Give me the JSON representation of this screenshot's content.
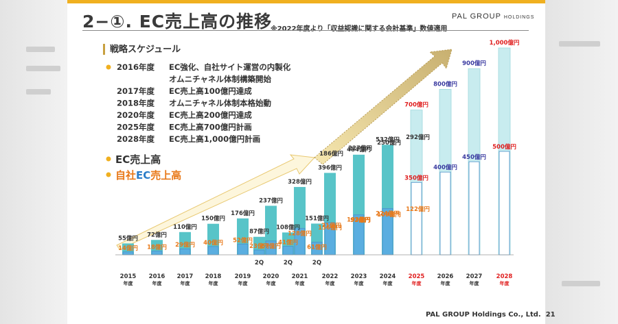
{
  "slide": {
    "title": "2−①. EC売上高の推移",
    "note": "※2022年度より「収益認識に関する会計基準」数値適用",
    "logo_main": "PAL GROUP",
    "logo_sub": "HOLDINGS",
    "footer": "PAL GROUP Holdings Co., Ltd.",
    "page_number": "21"
  },
  "strategy": {
    "heading": "戦略スケジュール",
    "items": [
      {
        "year": "2016年度",
        "text": "EC強化、自社サイト運営の内製化"
      },
      {
        "year": "",
        "text": "オムニチャネル体制構築開始"
      },
      {
        "year": "2017年度",
        "text": "EC売上高100億円達成"
      },
      {
        "year": "2018年度",
        "text": "オムニチャネル体制本格始動"
      },
      {
        "year": "2020年度",
        "text": "EC売上高200億円達成"
      },
      {
        "year": "2025年度",
        "text": "EC売上高700億円計画"
      },
      {
        "year": "2028年度",
        "text": "EC売上高1,000億円計画"
      }
    ]
  },
  "legend": {
    "ec_total": "EC売上高",
    "own_prefix": "自社",
    "own_ec": "EC",
    "own_suffix": "売上高"
  },
  "colors": {
    "accent": "#f0b020",
    "ec_bar": "#58c4c8",
    "ec_bar_plan": "#c8ecef",
    "own_bar": "#5aaee0",
    "own_bar_plan": "#ffffff",
    "orange": "#e87818",
    "red": "#e02020",
    "purple": "#3a3aa0",
    "dark": "#333333"
  },
  "chart_data": {
    "type": "bar",
    "unit": "億円",
    "categories": [
      {
        "label": "2015",
        "sub": "年度"
      },
      {
        "label": "2016",
        "sub": "年度"
      },
      {
        "label": "2017",
        "sub": "年度"
      },
      {
        "label": "2018",
        "sub": "年度"
      },
      {
        "label": "2019",
        "sub": "年度"
      },
      {
        "label": "",
        "sub": "2Q"
      },
      {
        "label": "2020",
        "sub": "年度"
      },
      {
        "label": "",
        "sub": "2Q"
      },
      {
        "label": "2021",
        "sub": "年度"
      },
      {
        "label": "",
        "sub": "2Q"
      },
      {
        "label": "2022",
        "sub": "年度"
      },
      {
        "label": "2023",
        "sub": "年度"
      },
      {
        "label": "2024",
        "sub": "年度"
      },
      {
        "label": "2025",
        "sub": "年度"
      },
      {
        "label": "2026",
        "sub": "年度"
      },
      {
        "label": "2027",
        "sub": "年度"
      },
      {
        "label": "2028",
        "sub": "年度"
      }
    ],
    "series": [
      {
        "name": "EC売上高",
        "values": [
          55,
          72,
          110,
          150,
          176,
          87,
          237,
          108,
          328,
          151,
          396,
          484,
          532,
          700,
          800,
          900,
          1000
        ]
      },
      {
        "name": "自社EC売上高",
        "values": [
          14,
          18,
          29,
          40,
          52,
          23,
          67,
          41,
          128,
          61,
          156,
          193,
          224,
          350,
          400,
          450,
          500
        ]
      }
    ],
    "total_labels": [
      "55億円",
      "72億円",
      "110億円",
      "150億円",
      "176億円",
      "87億円",
      "237億円",
      "108億円",
      "328億円",
      "151億円",
      "396億円",
      "484億円",
      "532億円",
      "700億円",
      "800億円",
      "900億円",
      "1,000億円"
    ],
    "own_labels": [
      "14億円",
      "18億円",
      "29億円",
      "40億円",
      "52億円",
      "23億円",
      "67億円",
      "41億円",
      "128億円",
      "61億円",
      "156億円",
      "193億円",
      "224億円",
      "350億円",
      "400億円",
      "450億円",
      "500億円"
    ],
    "own_labels_secondary": [
      {
        "index": 10,
        "text": "186億円"
      },
      {
        "index": 11,
        "text": "227億円"
      },
      {
        "index": 12,
        "text": "250億円"
      },
      {
        "index": 13,
        "text": "292億円"
      },
      {
        "index": 10,
        "text": "71億円"
      },
      {
        "index": 11,
        "text": "92億円"
      },
      {
        "index": 12,
        "text": "109億円"
      },
      {
        "index": 13,
        "text": "122億円"
      }
    ],
    "plan_from_index": 13,
    "highlight_index": [
      13,
      16
    ]
  }
}
